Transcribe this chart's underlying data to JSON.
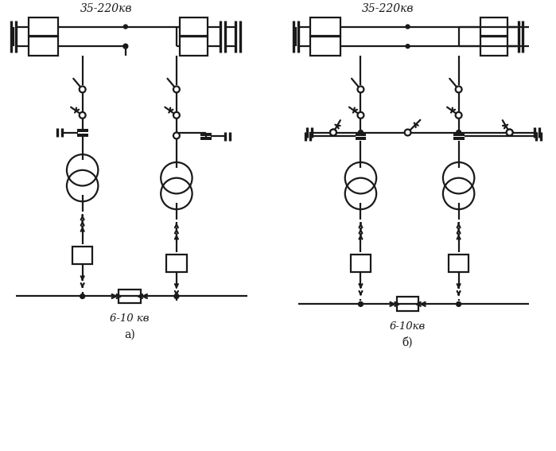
{
  "bg_color": "#ffffff",
  "lc": "#1a1a1a",
  "lw": 1.6,
  "title_a": "35-220кв",
  "title_b": "35-220кв",
  "label_a": "а)",
  "label_b": "б)",
  "bus_label_a": "6-10 кв",
  "bus_label_b": "6-10кв"
}
